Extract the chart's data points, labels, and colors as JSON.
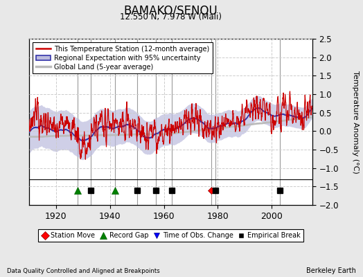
{
  "title": "BAMAKO/SENOU",
  "subtitle": "12.550 N, 7.978 W (Mali)",
  "ylabel": "Temperature Anomaly (°C)",
  "footer_left": "Data Quality Controlled and Aligned at Breakpoints",
  "footer_right": "Berkeley Earth",
  "year_start": 1910,
  "year_end": 2015,
  "ylim": [
    -2.0,
    2.5
  ],
  "yticks": [
    -2,
    -1.5,
    -1,
    -0.5,
    0,
    0.5,
    1,
    1.5,
    2,
    2.5
  ],
  "xticks": [
    1920,
    1940,
    1960,
    1980,
    2000
  ],
  "station_color": "#CC0000",
  "regional_color": "#3333AA",
  "regional_fill_color": "#BBBBDD",
  "global_color": "#BBBBBB",
  "station_moves": [
    1977.5
  ],
  "record_gaps": [
    1928,
    1942
  ],
  "time_obs_changes": [],
  "empirical_breaks": [
    1933,
    1950,
    1957,
    1963,
    1979,
    2003
  ],
  "marker_y": -1.6,
  "bg_color": "#E8E8E8",
  "plot_bg": "#FFFFFF",
  "vline_color": "#888888",
  "seed": 12345
}
